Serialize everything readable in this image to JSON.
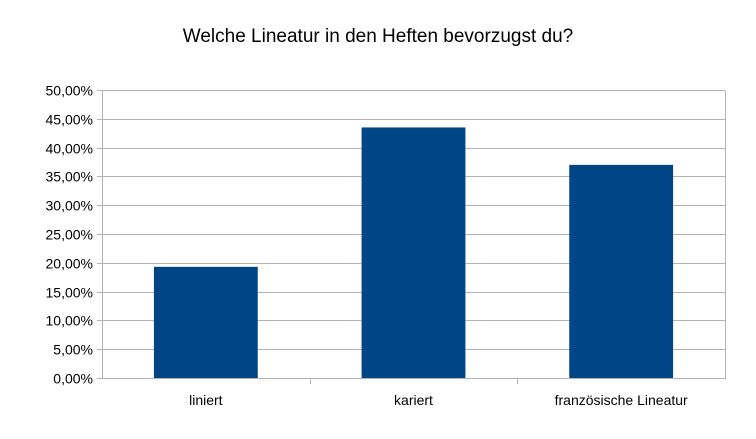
{
  "chart_data": {
    "type": "bar",
    "title": "Welche Lineatur in den Heften bevorzugst du?",
    "categories": [
      "liniert",
      "kariert",
      "französische Lineatur"
    ],
    "values": [
      0.193,
      0.435,
      0.37
    ],
    "ylim": [
      0,
      0.5
    ],
    "yticks": [
      0,
      0.05,
      0.1,
      0.15,
      0.2,
      0.25,
      0.3,
      0.35,
      0.4,
      0.45,
      0.5
    ],
    "ytick_labels": [
      "0,00%",
      "5,00%",
      "10,00%",
      "15,00%",
      "20,00%",
      "25,00%",
      "30,00%",
      "35,00%",
      "40,00%",
      "45,00%",
      "50,00%"
    ],
    "grid": true,
    "legend": "none",
    "bar_color": "#004586",
    "grid_color": "#b3b3b3"
  }
}
